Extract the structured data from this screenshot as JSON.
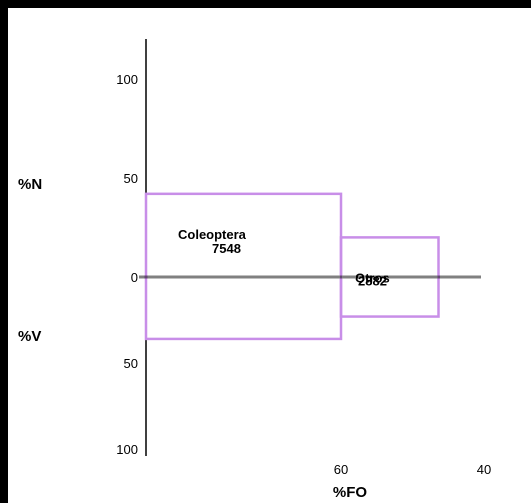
{
  "chart_data": {
    "type": "prey-importance-diagram",
    "xlabel": "%FO",
    "ylabel_top": "%N",
    "ylabel_bottom": "%V",
    "x_ticks": [
      60,
      40
    ],
    "y_ticks_top": [
      100,
      50,
      0
    ],
    "y_ticks_bottom": [
      50,
      100
    ],
    "ylim_top": [
      0,
      100
    ],
    "ylim_bottom": [
      0,
      100
    ],
    "categories": [
      {
        "name": "Coleoptera",
        "value_label": "7548",
        "fo_start": 0,
        "fo_end": 60,
        "n": 42,
        "v": 36,
        "color": "#c88ee8"
      },
      {
        "name": "Otros",
        "value_label": "2882",
        "fo_start": 60,
        "fo_end": 90,
        "n": 20,
        "v": 23,
        "color": "#c88ee8"
      }
    ],
    "colors": {
      "frame": "#000000",
      "axis": "#000000",
      "boxes": "#c88ee8"
    }
  }
}
